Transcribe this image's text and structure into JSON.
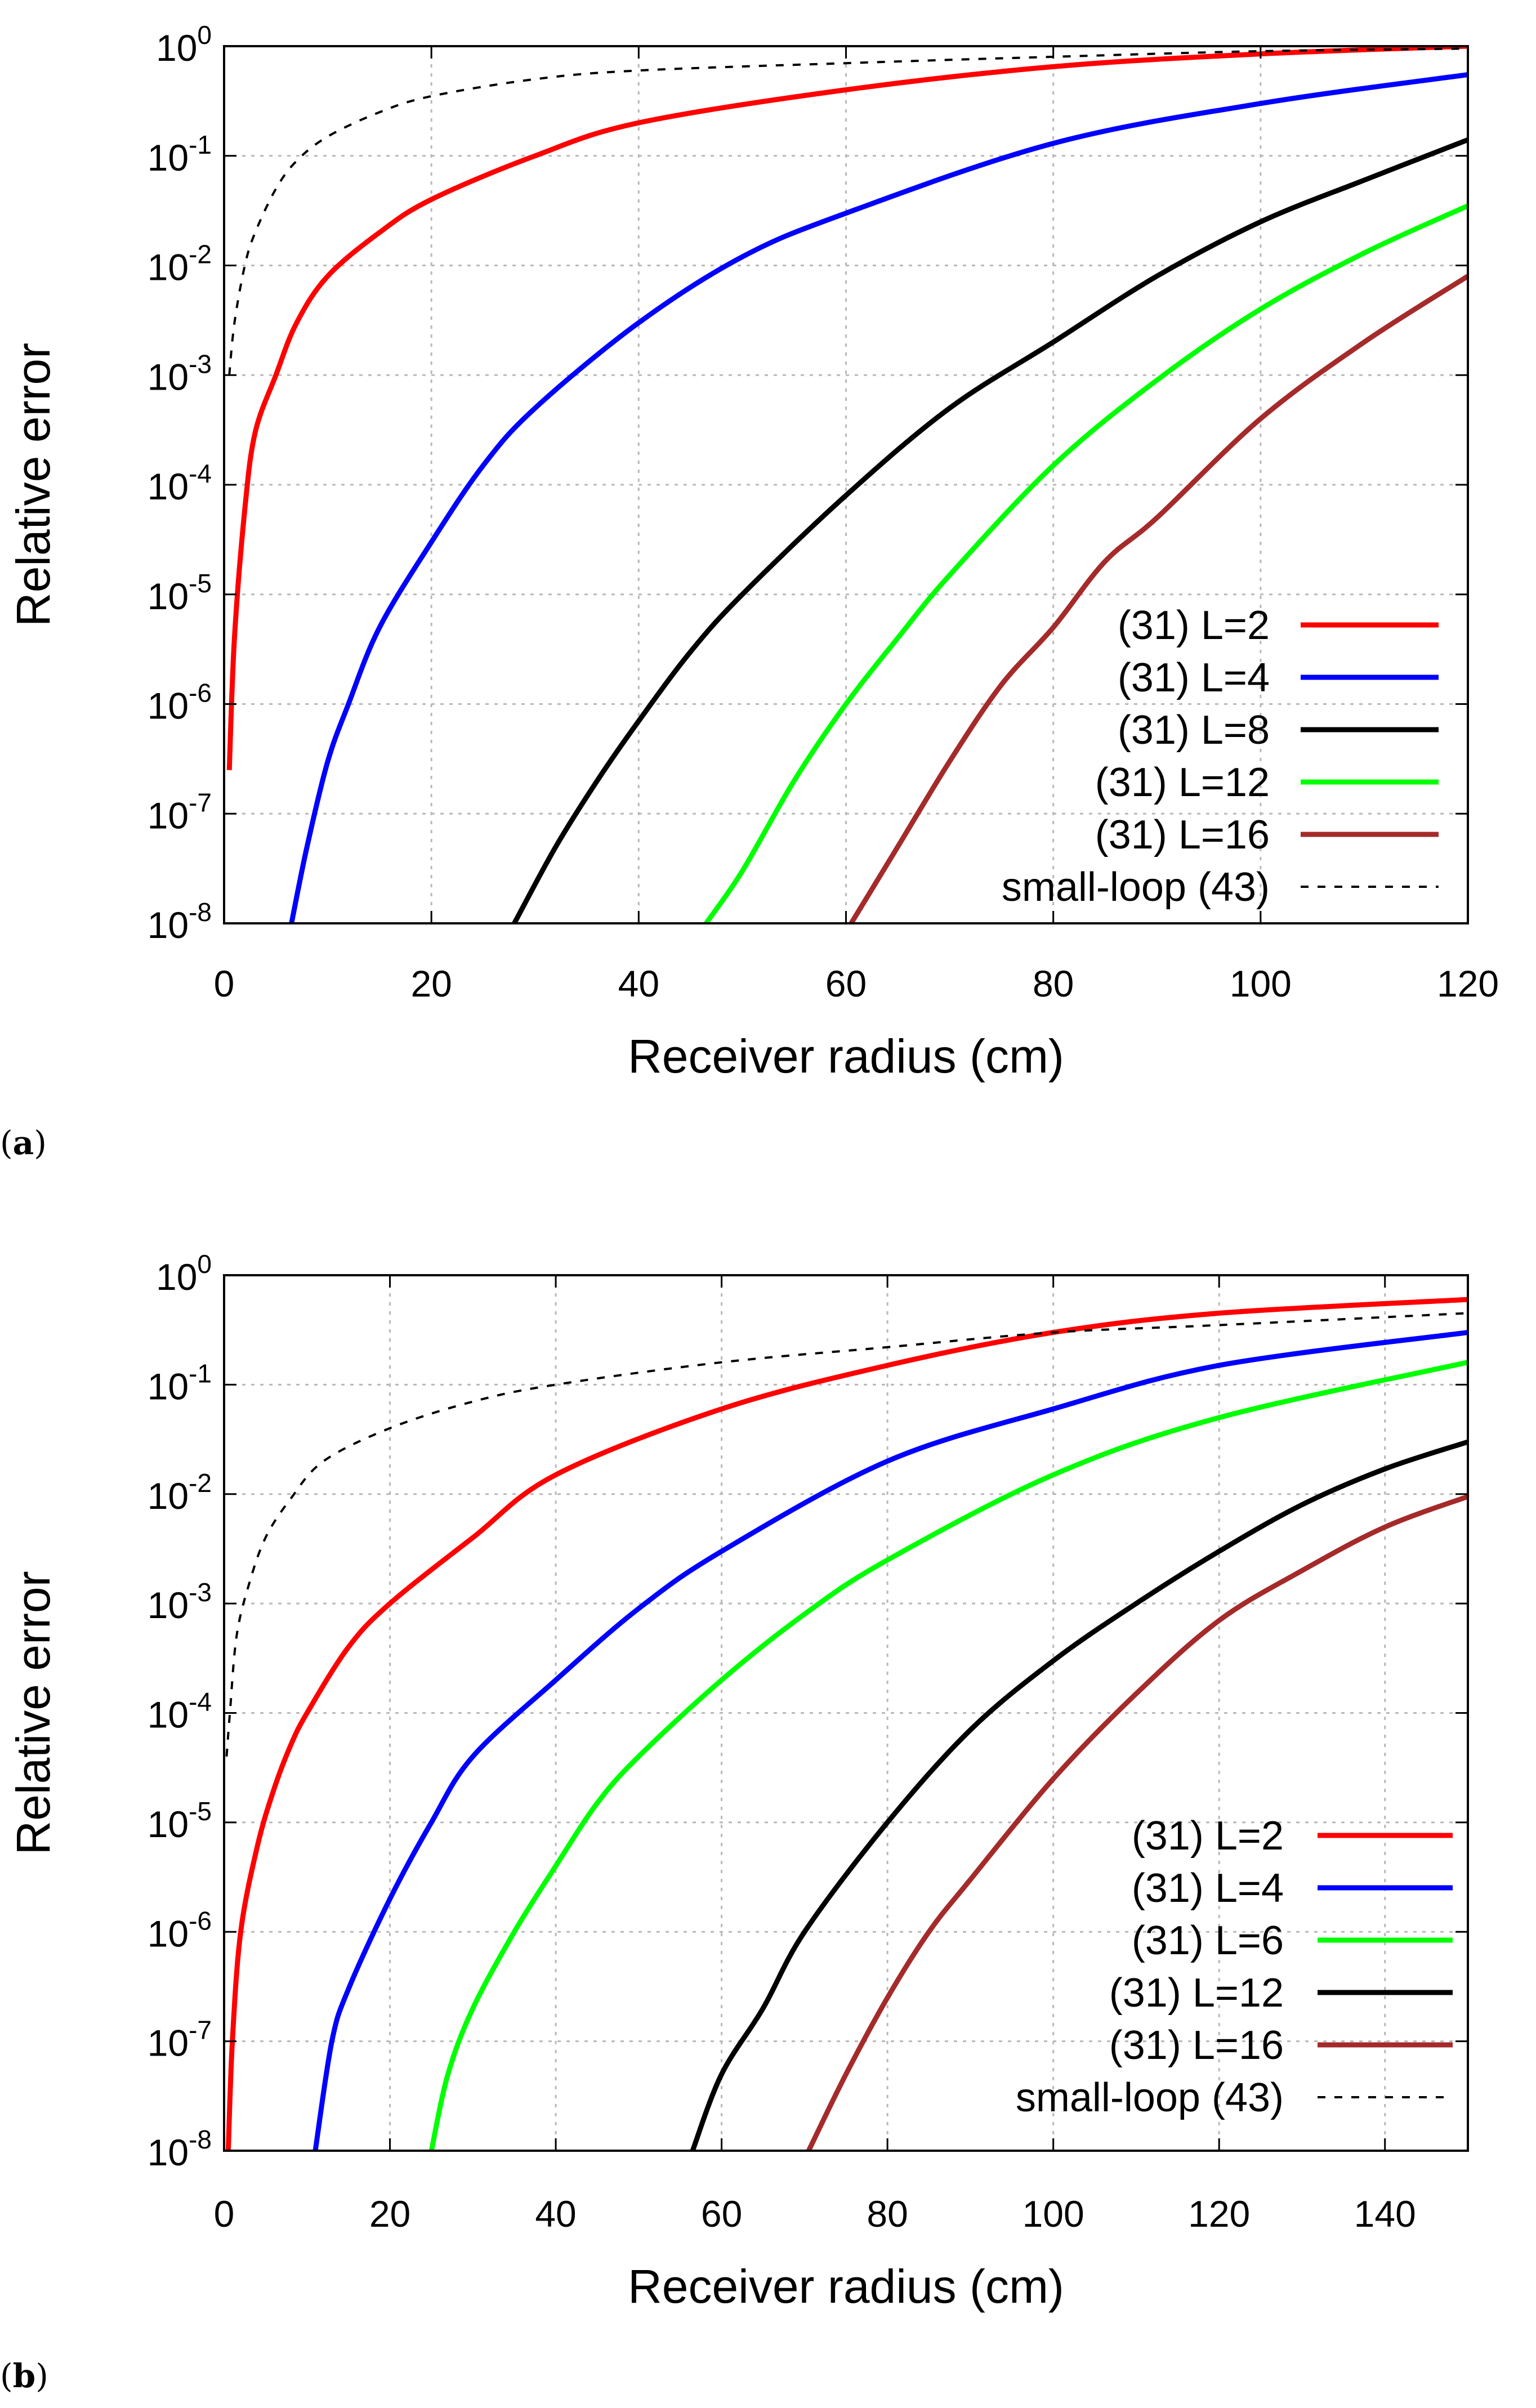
{
  "chart_data": [
    {
      "type": "line",
      "panel_label": "a",
      "xlabel": "Receiver radius (cm)",
      "ylabel": "Relative error",
      "xlim": [
        0,
        120
      ],
      "ylim": [
        1e-08,
        1
      ],
      "yscale": "log",
      "grid": true,
      "legend_position": "bottom-right",
      "x_ticks": [
        0,
        20,
        40,
        60,
        80,
        100,
        120
      ],
      "y_ticks": [
        {
          "base": "10",
          "exp": "-8"
        },
        {
          "base": "10",
          "exp": "-7"
        },
        {
          "base": "10",
          "exp": "-6"
        },
        {
          "base": "10",
          "exp": "-5"
        },
        {
          "base": "10",
          "exp": "-4"
        },
        {
          "base": "10",
          "exp": "-3"
        },
        {
          "base": "10",
          "exp": "-2"
        },
        {
          "base": "10",
          "exp": "-1"
        },
        {
          "base": "10",
          "exp": "0"
        }
      ],
      "series": [
        {
          "name": "(31)  L=2",
          "color": "#ff0000",
          "style": "solid",
          "x": [
            0.5,
            1,
            2,
            3,
            5,
            7,
            10,
            15,
            20,
            30,
            40,
            60,
            80,
            100,
            120
          ],
          "y": [
            2.5e-07,
            4e-06,
            6e-05,
            0.0003,
            0.001,
            0.003,
            0.008,
            0.02,
            0.04,
            0.1,
            0.2,
            0.4,
            0.65,
            0.85,
            1
          ]
        },
        {
          "name": "(31)  L=4",
          "color": "#0000ff",
          "style": "solid",
          "x": [
            6.5,
            8,
            10,
            12,
            15,
            20,
            25,
            30,
            40,
            50,
            60,
            80,
            100,
            120
          ],
          "y": [
            1e-08,
            5e-08,
            3e-07,
            1e-06,
            5e-06,
            3e-05,
            0.00015,
            0.0005,
            0.003,
            0.012,
            0.03,
            0.13,
            0.3,
            0.55
          ]
        },
        {
          "name": "(31)  L=8",
          "color": "#000000",
          "style": "solid",
          "x": [
            28,
            32,
            36,
            40,
            45,
            50,
            60,
            70,
            80,
            90,
            100,
            110,
            120
          ],
          "y": [
            1e-08,
            5e-08,
            2e-07,
            7e-07,
            3e-06,
            1e-05,
            8e-05,
            0.0005,
            0.002,
            0.008,
            0.025,
            0.06,
            0.14
          ]
        },
        {
          "name": "(31)  L=12",
          "color": "#00ff00",
          "style": "solid",
          "x": [
            46.5,
            50,
            55,
            60,
            65,
            70,
            80,
            90,
            100,
            110,
            120
          ],
          "y": [
            1e-08,
            3e-08,
            2e-07,
            1e-06,
            4e-06,
            1.5e-05,
            0.00015,
            0.0009,
            0.004,
            0.013,
            0.035
          ]
        },
        {
          "name": "(31)  L=16",
          "color": "#a52a2a",
          "style": "solid",
          "x": [
            60.5,
            65,
            70,
            75,
            80,
            85,
            90,
            100,
            110,
            120
          ],
          "y": [
            1e-08,
            5e-08,
            3e-07,
            1.5e-06,
            5e-06,
            2e-05,
            5e-05,
            0.0004,
            0.002,
            0.008
          ]
        },
        {
          "name": "small-loop (43)",
          "color": "#000000",
          "style": "dashed",
          "x": [
            0.5,
            1,
            2,
            3,
            5,
            7,
            10,
            15,
            20,
            30,
            40,
            60,
            80,
            100,
            120
          ],
          "y": [
            0.001,
            0.003,
            0.01,
            0.02,
            0.05,
            0.09,
            0.15,
            0.25,
            0.35,
            0.5,
            0.6,
            0.7,
            0.8,
            0.9,
            0.95
          ]
        }
      ]
    },
    {
      "type": "line",
      "panel_label": "b",
      "xlabel": "Receiver radius (cm)",
      "ylabel": "Relative error",
      "xlim": [
        0,
        150
      ],
      "ylim": [
        1e-08,
        1
      ],
      "yscale": "log",
      "grid": true,
      "legend_position": "bottom-right",
      "x_ticks": [
        0,
        20,
        40,
        60,
        80,
        100,
        120,
        140
      ],
      "y_ticks": [
        {
          "base": "10",
          "exp": "-8"
        },
        {
          "base": "10",
          "exp": "-7"
        },
        {
          "base": "10",
          "exp": "-6"
        },
        {
          "base": "10",
          "exp": "-5"
        },
        {
          "base": "10",
          "exp": "-4"
        },
        {
          "base": "10",
          "exp": "-3"
        },
        {
          "base": "10",
          "exp": "-2"
        },
        {
          "base": "10",
          "exp": "-1"
        },
        {
          "base": "10",
          "exp": "0"
        }
      ],
      "series": [
        {
          "name": "(31) L=2",
          "color": "#ff0000",
          "style": "solid",
          "x": [
            0.5,
            1,
            2,
            4,
            6,
            8,
            10,
            15,
            20,
            30,
            40,
            60,
            80,
            100,
            120,
            150
          ],
          "y": [
            1e-08,
            1e-07,
            1e-06,
            6e-06,
            2e-05,
            5e-05,
            0.0001,
            0.0004,
            0.001,
            0.004,
            0.015,
            0.06,
            0.15,
            0.3,
            0.45,
            0.6
          ]
        },
        {
          "name": "(31) L=4",
          "color": "#0000ff",
          "style": "solid",
          "x": [
            11,
            13,
            15,
            20,
            25,
            30,
            40,
            50,
            60,
            80,
            100,
            120,
            150
          ],
          "y": [
            1e-08,
            1e-07,
            3e-07,
            2e-06,
            1e-05,
            4e-05,
            0.0002,
            0.0009,
            0.003,
            0.02,
            0.06,
            0.15,
            0.3
          ]
        },
        {
          "name": "(31) L=6",
          "color": "#00ff00",
          "style": "solid",
          "x": [
            25,
            27,
            30,
            35,
            40,
            45,
            50,
            60,
            70,
            80,
            100,
            120,
            150
          ],
          "y": [
            1e-08,
            5e-08,
            2e-07,
            1e-06,
            4e-06,
            1.5e-05,
            4e-05,
            0.0002,
            0.0008,
            0.0025,
            0.015,
            0.05,
            0.16
          ]
        },
        {
          "name": "(31) L=12",
          "color": "#000000",
          "style": "solid",
          "x": [
            56.5,
            60,
            65,
            70,
            80,
            90,
            100,
            110,
            120,
            130,
            140,
            150
          ],
          "y": [
            1e-08,
            5e-08,
            2e-07,
            1e-06,
            1e-05,
            7e-05,
            0.0003,
            0.001,
            0.003,
            0.008,
            0.017,
            0.03
          ]
        },
        {
          "name": "(31) L=16",
          "color": "#a52a2a",
          "style": "solid",
          "x": [
            70.5,
            75,
            80,
            85,
            90,
            100,
            110,
            120,
            130,
            140,
            150
          ],
          "y": [
            1e-08,
            5e-08,
            2.5e-07,
            1e-06,
            3e-06,
            2.5e-05,
            0.00015,
            0.0007,
            0.002,
            0.005,
            0.0095
          ]
        },
        {
          "name": "small-loop (43)",
          "color": "#000000",
          "style": "dashed",
          "x": [
            0.3,
            0.7,
            1.5,
            3,
            5,
            8,
            12,
            20,
            30,
            40,
            60,
            80,
            100,
            120,
            150
          ],
          "y": [
            4e-05,
            0.0001,
            0.0005,
            0.0015,
            0.004,
            0.009,
            0.02,
            0.04,
            0.07,
            0.1,
            0.16,
            0.22,
            0.3,
            0.35,
            0.45
          ]
        }
      ]
    }
  ]
}
